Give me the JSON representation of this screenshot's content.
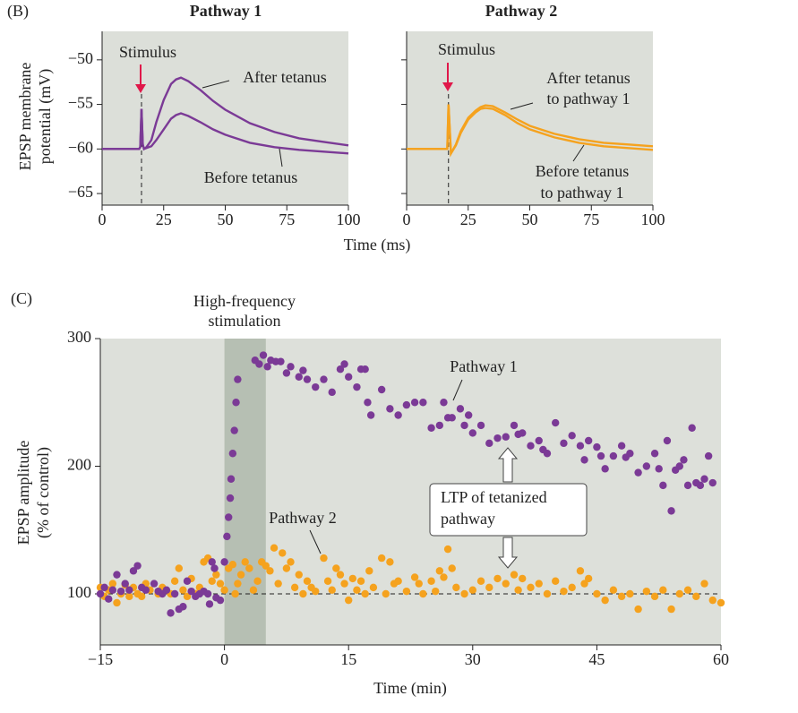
{
  "chart_data": [
    {
      "type": "line",
      "panel": "(B)",
      "title": "Pathway 1",
      "ylabel": [
        "EPSP membrane",
        "potential (mV)"
      ],
      "xlabel": "Time (ms)",
      "annotations": [
        "Stimulus",
        "After tetanus",
        "Before tetanus"
      ],
      "marker_x": 16,
      "x": [
        0,
        5,
        10,
        15,
        15.5,
        16,
        16.5,
        17,
        18,
        20,
        22,
        25,
        28,
        30,
        32,
        35,
        40,
        45,
        50,
        60,
        70,
        80,
        90,
        100
      ],
      "series": [
        {
          "color": "#7b3a96",
          "values": [
            -60,
            -60,
            -60,
            -60,
            -59.8,
            -55.5,
            -59.5,
            -60,
            -59.8,
            -59,
            -57,
            -54.5,
            -52.7,
            -52.2,
            -52,
            -52.4,
            -53.4,
            -54.6,
            -55.6,
            -57.1,
            -58.1,
            -58.8,
            -59.2,
            -59.6
          ]
        },
        {
          "color": "#7b3a96",
          "values": [
            -60,
            -60,
            -60,
            -60,
            -59.8,
            -55.5,
            -59.5,
            -60,
            -59.9,
            -59.7,
            -59,
            -57.8,
            -56.6,
            -56.2,
            -56,
            -56.3,
            -57,
            -57.8,
            -58.4,
            -59.3,
            -59.8,
            -60.1,
            -60.3,
            -60.5
          ]
        }
      ],
      "xlim": [
        0,
        100
      ],
      "xticks": [
        0,
        25,
        50,
        75,
        100
      ],
      "ylim": [
        -66.3,
        -46.8
      ],
      "yticks": [
        {
          "value": -65,
          "label": "−65"
        },
        {
          "value": -60,
          "label": "−60"
        },
        {
          "value": -55,
          "label": "−55"
        },
        {
          "value": -50,
          "label": "−50"
        }
      ]
    },
    {
      "type": "line",
      "title": "Pathway 2",
      "annotations": [
        "Stimulus",
        [
          "After tetanus",
          "to pathway 1"
        ],
        [
          "Before tetanus",
          "to pathway 1"
        ]
      ],
      "marker_x": 17,
      "x": [
        0,
        5,
        10,
        15,
        15.5,
        16,
        16.5,
        17,
        18,
        20,
        22,
        25,
        28,
        30,
        32,
        35,
        40,
        45,
        50,
        60,
        70,
        80,
        90,
        100
      ],
      "series": [
        {
          "color": "#f5a21e",
          "values": [
            -60,
            -60,
            -60,
            -60,
            -60,
            -60,
            -60,
            -55,
            -60.5,
            -59.5,
            -58,
            -56.5,
            -55.7,
            -55.3,
            -55.1,
            -55.2,
            -55.9,
            -56.7,
            -57.4,
            -58.3,
            -58.9,
            -59.3,
            -59.5,
            -59.7
          ]
        },
        {
          "color": "#f5a21e",
          "values": [
            -60,
            -60,
            -60,
            -60,
            -60,
            -60,
            -60,
            -55,
            -60.5,
            -59.6,
            -58.2,
            -56.7,
            -55.9,
            -55.5,
            -55.4,
            -55.5,
            -56.2,
            -57.1,
            -57.8,
            -58.7,
            -59.3,
            -59.7,
            -59.9,
            -60.1
          ]
        }
      ],
      "xlim": [
        0,
        100
      ],
      "xticks": [
        0,
        25,
        50,
        75,
        100
      ],
      "ylim": [
        -66.3,
        -46.8
      ],
      "yticks": [
        -65,
        -60,
        -55,
        -50
      ],
      "hide_yticks": true
    },
    {
      "type": "scatter",
      "panel": "(C)",
      "ylabel": [
        "EPSP amplitude",
        "(% of control)"
      ],
      "xlabel": "Time (min)",
      "annotations": [
        [
          "High-frequency",
          "stimulation"
        ],
        [
          "LTP of tetanized",
          "pathway"
        ]
      ],
      "shade": [
        0,
        5
      ],
      "hline": 100,
      "series": [
        {
          "name": "Pathway 1",
          "color": "#7b3a96",
          "x": [
            -15,
            -14.5,
            -14,
            -13.5,
            -13,
            -12.5,
            -12,
            -11.5,
            -11,
            -10.5,
            -10,
            -9.5,
            -8.5,
            -8,
            -7.5,
            -7,
            -6.5,
            -6,
            -5.5,
            -5,
            -4.5,
            -4,
            -3.5,
            -3,
            -2.5,
            -2,
            -1.8,
            -1.5,
            -1.2,
            -1,
            -0.5,
            0,
            0.3,
            0.5,
            0.7,
            0.8,
            1,
            1.2,
            1.4,
            1.6,
            3.7,
            4.2,
            4.7,
            5.2,
            5.6,
            6.2,
            6.8,
            7.5,
            8,
            9,
            9.5,
            10,
            11,
            12,
            13,
            14,
            14.5,
            15,
            16,
            16.5,
            17,
            17.3,
            17.7,
            19,
            20,
            21,
            22,
            23,
            24,
            25,
            26,
            26.5,
            27,
            27.5,
            28.5,
            29,
            29.5,
            30,
            31,
            32,
            33,
            34,
            35,
            35.5,
            36,
            37,
            38,
            38.5,
            39,
            40,
            41,
            42,
            43,
            43.5,
            44,
            45,
            45.5,
            46,
            47,
            48,
            48.5,
            49,
            50,
            51,
            52,
            52.5,
            53,
            53.5,
            54,
            54.5,
            55,
            55.5,
            56,
            56.5,
            57,
            57.5,
            58,
            58.5,
            59
          ],
          "values": [
            100,
            105,
            96,
            103,
            115,
            102,
            108,
            103,
            118,
            122,
            105,
            103,
            108,
            102,
            100,
            103,
            85,
            100,
            88,
            90,
            110,
            102,
            98,
            100,
            102,
            100,
            92,
            125,
            120,
            97,
            95,
            125,
            145,
            160,
            175,
            190,
            210,
            228,
            250,
            268,
            283,
            280,
            287,
            278,
            283,
            282,
            282,
            273,
            278,
            270,
            275,
            268,
            262,
            268,
            258,
            276,
            280,
            270,
            262,
            276,
            276,
            250,
            240,
            260,
            245,
            240,
            248,
            250,
            250,
            230,
            232,
            250,
            238,
            238,
            245,
            232,
            240,
            226,
            232,
            218,
            222,
            223,
            232,
            225,
            226,
            216,
            220,
            213,
            210,
            234,
            218,
            224,
            216,
            205,
            220,
            215,
            208,
            198,
            208,
            216,
            207,
            210,
            195,
            200,
            210,
            198,
            185,
            220,
            165,
            197,
            200,
            205,
            185,
            230,
            187,
            185,
            190,
            208,
            187
          ]
        },
        {
          "name": "Pathway 2",
          "color": "#f5a21e",
          "x": [
            -15,
            -14.5,
            -14,
            -13.5,
            -13,
            -12.5,
            -12,
            -11.5,
            -11,
            -10.5,
            -10,
            -9.5,
            -9,
            -8,
            -7.5,
            -6.5,
            -6,
            -5.5,
            -5,
            -4.5,
            -4,
            -3.5,
            -3,
            -2.5,
            -2,
            -1.5,
            -1,
            -0.5,
            0,
            0.5,
            1,
            1.3,
            1.6,
            2,
            2.5,
            3,
            3.5,
            4,
            4.5,
            5,
            5.5,
            6,
            6.5,
            7,
            7.5,
            8,
            8.5,
            9,
            9.5,
            10,
            10.5,
            11,
            12,
            12.5,
            13,
            13.5,
            14,
            14.5,
            15,
            15.5,
            16,
            16.5,
            17,
            17.5,
            18,
            19,
            19.5,
            20,
            20.5,
            21,
            22,
            23,
            23.5,
            24,
            25,
            25.5,
            26,
            26.5,
            27,
            27.5,
            28,
            29,
            30,
            31,
            32,
            33,
            34,
            35,
            35.5,
            36,
            37,
            38,
            39,
            40,
            41,
            42,
            43,
            43.5,
            44,
            45,
            46,
            47,
            48,
            49,
            50,
            51,
            52,
            53,
            54,
            55,
            56,
            57,
            58,
            59,
            60
          ],
          "values": [
            105,
            98,
            103,
            108,
            93,
            100,
            107,
            98,
            105,
            100,
            98,
            108,
            103,
            100,
            105,
            100,
            110,
            120,
            103,
            98,
            112,
            100,
            105,
            125,
            128,
            110,
            115,
            108,
            103,
            120,
            123,
            100,
            108,
            115,
            125,
            120,
            103,
            110,
            125,
            122,
            118,
            136,
            108,
            132,
            120,
            125,
            105,
            115,
            100,
            110,
            105,
            102,
            128,
            110,
            103,
            120,
            115,
            108,
            95,
            112,
            103,
            110,
            100,
            118,
            105,
            128,
            100,
            125,
            108,
            110,
            102,
            113,
            108,
            100,
            110,
            102,
            118,
            113,
            135,
            120,
            105,
            100,
            103,
            110,
            105,
            112,
            108,
            115,
            103,
            112,
            105,
            108,
            100,
            110,
            102,
            105,
            118,
            108,
            112,
            100,
            95,
            103,
            98,
            100,
            88,
            102,
            98,
            103,
            88,
            100,
            103,
            98,
            108,
            95,
            93
          ]
        }
      ],
      "xlim": [
        -15,
        60
      ],
      "xticks": [
        {
          "value": -15,
          "label": "−15"
        },
        0,
        15,
        30,
        45,
        60
      ],
      "ylim": [
        60,
        300
      ],
      "yticks": [
        100,
        200,
        300
      ]
    }
  ]
}
